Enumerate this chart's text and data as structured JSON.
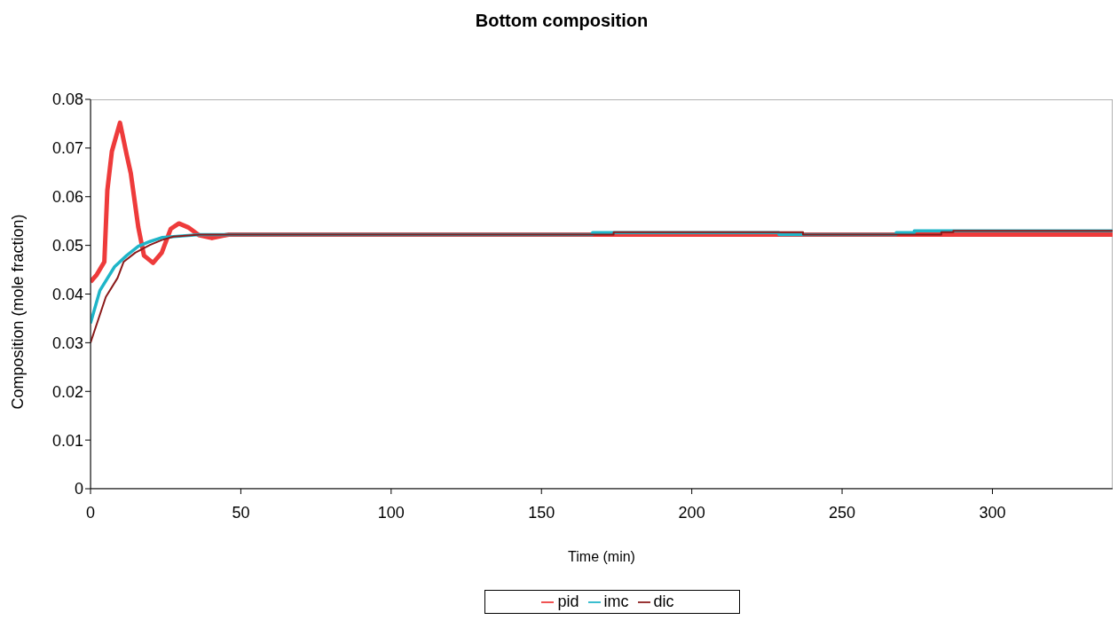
{
  "chart_data": {
    "type": "line",
    "title": "Bottom composition",
    "xlabel": "Time (min)",
    "ylabel": "Composition (mole fraction)",
    "xlim": [
      0,
      340
    ],
    "xticks": [
      0,
      50,
      100,
      150,
      200,
      250,
      300
    ],
    "ylim": [
      0,
      0.08
    ],
    "yticks": [
      0,
      0.01,
      0.02,
      0.03,
      0.04,
      0.05,
      0.06,
      0.07,
      0.08
    ],
    "grid": false,
    "legend": "bottom",
    "marker": "none",
    "line_style": "solid",
    "series": [
      {
        "name": "pid",
        "color": "#ee3b3b",
        "x": [
          0,
          2.1,
          4.6,
          5.6,
          7.1,
          9.8,
          12,
          13.4,
          15.9,
          17.8,
          20.8,
          23.7,
          26.7,
          29.4,
          32.5,
          36,
          40.4,
          44.3,
          46,
          340
        ],
        "values": [
          0.0425,
          0.044,
          0.0466,
          0.0613,
          0.0693,
          0.0752,
          0.0687,
          0.0648,
          0.0537,
          0.0479,
          0.0464,
          0.0485,
          0.0534,
          0.0545,
          0.0537,
          0.0521,
          0.0515,
          0.052,
          0.0522,
          0.0522
        ]
      },
      {
        "name": "imc",
        "color": "#1fb5c8",
        "x": [
          0,
          3.1,
          8,
          12,
          15.9,
          19.8,
          23.7,
          27.6,
          36.4,
          167,
          167,
          229,
          229,
          268,
          268,
          274,
          274,
          340
        ],
        "values": [
          0.034,
          0.0407,
          0.0456,
          0.0479,
          0.0498,
          0.0508,
          0.0516,
          0.0518,
          0.0522,
          0.0522,
          0.0526,
          0.0526,
          0.0522,
          0.0522,
          0.0526,
          0.0526,
          0.053,
          0.053
        ]
      },
      {
        "name": "dic",
        "color": "#8b1a1a",
        "x": [
          0,
          5.1,
          9,
          11,
          14.9,
          19.8,
          23.7,
          27.6,
          36.4,
          174,
          174,
          237,
          237,
          283,
          283,
          287,
          287,
          340
        ],
        "values": [
          0.03,
          0.0394,
          0.0433,
          0.0466,
          0.0485,
          0.0501,
          0.0511,
          0.0518,
          0.0522,
          0.0522,
          0.0527,
          0.0527,
          0.0522,
          0.0522,
          0.0527,
          0.0527,
          0.053,
          0.053
        ]
      }
    ]
  }
}
